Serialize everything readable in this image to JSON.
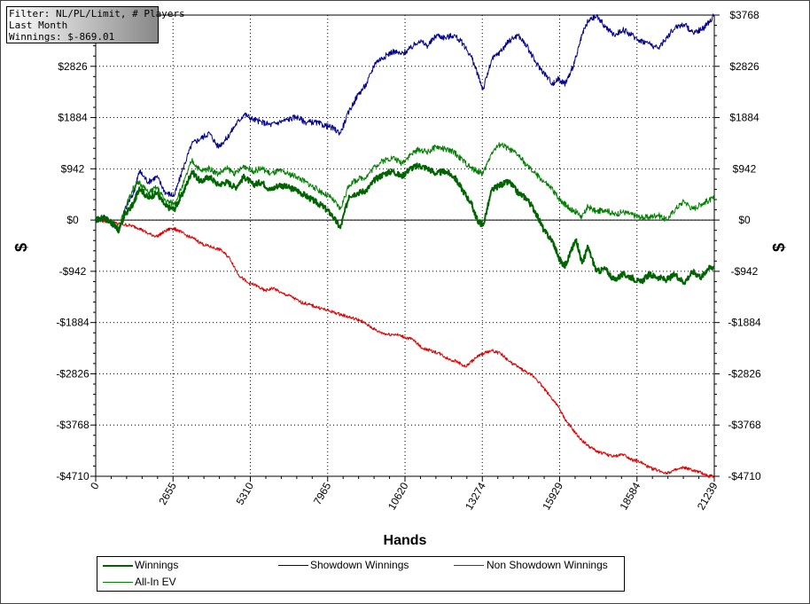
{
  "filter_box": {
    "line1": "Filter: NL/PL/Limit, # Players",
    "line2": "Last Month",
    "line3": "Winnings: $-869.01"
  },
  "chart_data": {
    "type": "line",
    "xlabel": "Hands",
    "ylabel": "$",
    "ylabel_right": "$",
    "xlim": [
      0,
      21239
    ],
    "ylim": [
      -4710,
      3768
    ],
    "x_ticks": [
      0,
      2655,
      5310,
      7965,
      10620,
      13274,
      15929,
      18584,
      21239
    ],
    "y_ticks": [
      3768,
      2826,
      1884,
      942,
      0,
      -942,
      -1884,
      -2826,
      -3768,
      -4710
    ],
    "y_tick_labels": [
      "$3768",
      "$2826",
      "$1884",
      "$942",
      "$0",
      "-$942",
      "-$1884",
      "-$2826",
      "-$3768",
      "-$4710"
    ],
    "grid": true,
    "legend_position": "bottom",
    "series": [
      {
        "name": "Winnings",
        "color": "#006400",
        "width": 2,
        "x": [
          0,
          300,
          600,
          800,
          1000,
          1300,
          1500,
          1800,
          2100,
          2400,
          2700,
          3000,
          3300,
          3600,
          3900,
          4200,
          4500,
          4800,
          5100,
          5400,
          5700,
          6000,
          6300,
          6600,
          6900,
          7200,
          7500,
          7800,
          8100,
          8400,
          8700,
          9000,
          9300,
          9600,
          9900,
          10200,
          10500,
          10800,
          11100,
          11400,
          11700,
          12000,
          12300,
          12600,
          12900,
          13100,
          13300,
          13600,
          13900,
          14200,
          14500,
          14800,
          15100,
          15400,
          15700,
          15900,
          16100,
          16300,
          16500,
          16700,
          16900,
          17200,
          17500,
          17800,
          18100,
          18400,
          18700,
          19000,
          19300,
          19600,
          19900,
          20200,
          20500,
          20800,
          21000,
          21239
        ],
        "y": [
          0,
          50,
          -80,
          -200,
          100,
          300,
          600,
          400,
          500,
          250,
          200,
          500,
          900,
          700,
          800,
          650,
          700,
          600,
          800,
          650,
          700,
          550,
          650,
          600,
          550,
          450,
          350,
          250,
          100,
          -150,
          450,
          500,
          550,
          750,
          850,
          900,
          800,
          950,
          1000,
          950,
          850,
          900,
          800,
          550,
          300,
          0,
          -100,
          550,
          650,
          700,
          500,
          400,
          150,
          -200,
          -400,
          -700,
          -850,
          -600,
          -350,
          -800,
          -500,
          -950,
          -900,
          -1100,
          -1000,
          -1050,
          -1150,
          -1000,
          -1050,
          -1100,
          -1000,
          -1150,
          -950,
          -1050,
          -900,
          -850
        ]
      },
      {
        "name": "Showdown Winnings",
        "color": "#00008b",
        "width": 1,
        "x": [
          0,
          300,
          600,
          800,
          1000,
          1300,
          1500,
          1800,
          2100,
          2400,
          2700,
          3000,
          3300,
          3600,
          3900,
          4200,
          4500,
          4800,
          5100,
          5400,
          5700,
          6000,
          6300,
          6600,
          6900,
          7200,
          7500,
          7800,
          8100,
          8400,
          8700,
          9000,
          9300,
          9600,
          9900,
          10200,
          10500,
          10800,
          11100,
          11400,
          11700,
          12000,
          12300,
          12600,
          12900,
          13100,
          13300,
          13600,
          13900,
          14200,
          14500,
          14800,
          15100,
          15400,
          15700,
          15900,
          16100,
          16300,
          16500,
          16700,
          16900,
          17200,
          17500,
          17800,
          18100,
          18400,
          18700,
          19000,
          19300,
          19600,
          19900,
          20200,
          20500,
          20800,
          21000,
          21239
        ],
        "y": [
          0,
          60,
          -70,
          -190,
          200,
          500,
          900,
          700,
          800,
          500,
          450,
          950,
          1400,
          1500,
          1600,
          1350,
          1500,
          1750,
          1950,
          1850,
          1800,
          1750,
          1800,
          1850,
          1900,
          1800,
          1800,
          1750,
          1700,
          1600,
          2000,
          2300,
          2500,
          2900,
          3000,
          3100,
          3050,
          3150,
          3300,
          3200,
          3400,
          3350,
          3400,
          3250,
          3000,
          2700,
          2400,
          2950,
          3100,
          3300,
          3400,
          3200,
          2900,
          2700,
          2500,
          2600,
          2500,
          2700,
          3000,
          3400,
          3650,
          3750,
          3550,
          3400,
          3500,
          3400,
          3300,
          3250,
          3150,
          3350,
          3550,
          3600,
          3450,
          3500,
          3600,
          3768
        ]
      },
      {
        "name": "Non Showdown Winnings",
        "color": "#dd0000",
        "width": 1,
        "x": [
          0,
          300,
          600,
          900,
          1200,
          1500,
          1800,
          2100,
          2400,
          2600,
          2800,
          3100,
          3400,
          3700,
          4000,
          4300,
          4600,
          4900,
          5200,
          5500,
          5800,
          6100,
          6400,
          6700,
          7000,
          7300,
          7600,
          7900,
          8200,
          8500,
          8800,
          9100,
          9400,
          9700,
          10000,
          10300,
          10600,
          10900,
          11200,
          11500,
          11800,
          12100,
          12400,
          12700,
          13000,
          13300,
          13600,
          13900,
          14200,
          14500,
          14800,
          15100,
          15400,
          15700,
          15900,
          16100,
          16300,
          16600,
          16900,
          17200,
          17500,
          17800,
          18100,
          18400,
          18700,
          19000,
          19300,
          19600,
          19900,
          20200,
          20500,
          20800,
          21000,
          21239
        ],
        "y": [
          0,
          -20,
          -50,
          -80,
          -100,
          -150,
          -250,
          -300,
          -200,
          -150,
          -180,
          -280,
          -350,
          -450,
          -500,
          -550,
          -700,
          -1000,
          -1150,
          -1200,
          -1300,
          -1250,
          -1350,
          -1400,
          -1500,
          -1550,
          -1600,
          -1650,
          -1700,
          -1750,
          -1800,
          -1850,
          -1950,
          -2050,
          -2100,
          -2100,
          -2150,
          -2200,
          -2350,
          -2400,
          -2450,
          -2550,
          -2600,
          -2700,
          -2550,
          -2450,
          -2400,
          -2450,
          -2600,
          -2700,
          -2800,
          -2900,
          -3100,
          -3300,
          -3450,
          -3650,
          -3800,
          -4000,
          -4150,
          -4250,
          -4300,
          -4350,
          -4300,
          -4400,
          -4450,
          -4550,
          -4600,
          -4650,
          -4600,
          -4550,
          -4600,
          -4650,
          -4700,
          -4710
        ]
      },
      {
        "name": "All-In EV",
        "color": "#008000",
        "width": 1,
        "x": [
          0,
          300,
          600,
          800,
          1000,
          1300,
          1500,
          1800,
          2100,
          2400,
          2700,
          3000,
          3300,
          3600,
          3900,
          4200,
          4500,
          4800,
          5100,
          5400,
          5700,
          6000,
          6300,
          6600,
          6900,
          7200,
          7500,
          7800,
          8100,
          8400,
          8700,
          9000,
          9300,
          9600,
          9900,
          10200,
          10500,
          10800,
          11100,
          11400,
          11700,
          12000,
          12300,
          12600,
          12900,
          13100,
          13300,
          13600,
          13900,
          14200,
          14500,
          14800,
          15100,
          15400,
          15700,
          15900,
          16100,
          16300,
          16500,
          16700,
          16900,
          17200,
          17500,
          17800,
          18100,
          18400,
          18700,
          19000,
          19300,
          19600,
          19900,
          20200,
          20500,
          20800,
          21000,
          21239
        ],
        "y": [
          0,
          40,
          -60,
          -150,
          200,
          600,
          700,
          500,
          600,
          350,
          300,
          650,
          1100,
          900,
          950,
          850,
          950,
          850,
          1000,
          900,
          950,
          850,
          900,
          850,
          800,
          700,
          600,
          500,
          400,
          200,
          650,
          750,
          800,
          1000,
          1100,
          1150,
          1050,
          1200,
          1300,
          1250,
          1350,
          1300,
          1250,
          1100,
          950,
          900,
          850,
          1250,
          1400,
          1300,
          1200,
          1000,
          850,
          700,
          550,
          400,
          300,
          200,
          150,
          50,
          250,
          150,
          200,
          100,
          150,
          100,
          50,
          50,
          100,
          0,
          200,
          350,
          200,
          300,
          350,
          400
        ]
      }
    ]
  },
  "legend": {
    "items": [
      {
        "label": "Winnings",
        "color": "#006400",
        "width": 2
      },
      {
        "label": "Showdown Winnings",
        "color": "#00008b",
        "width": 1
      },
      {
        "label": "Non Showdown Winnings",
        "color": "#dd0000",
        "width": 1
      },
      {
        "label": "All-In EV",
        "color": "#008000",
        "width": 1
      }
    ]
  }
}
